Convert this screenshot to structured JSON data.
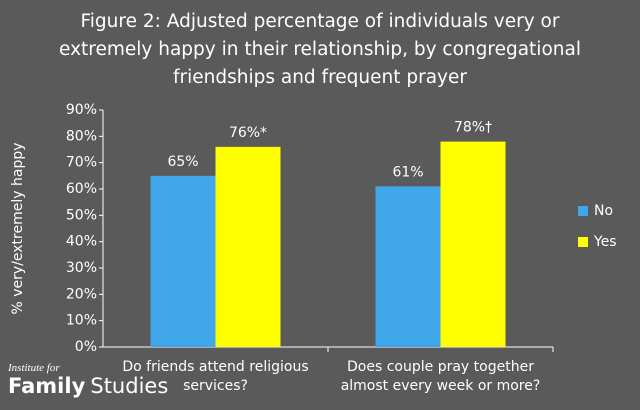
{
  "chart_data": {
    "type": "grouped-bar",
    "title": "Figure 2: Adjusted percentage of individuals very or extremely happy in their relationship, by congregational friendships and frequent prayer",
    "y_label": "% very/extremely happy",
    "categories": [
      "Do friends attend religious services?",
      "Does couple pray together almost every week or more?"
    ],
    "series": [
      {
        "name": "No",
        "color": "#3fa7e9",
        "values": [
          65,
          61
        ],
        "value_labels": [
          "65%",
          "61%"
        ]
      },
      {
        "name": "Yes",
        "color": "#ffff00",
        "values": [
          76,
          78
        ],
        "value_labels": [
          "76%*",
          "78%†"
        ]
      }
    ],
    "ylim": [
      0,
      90
    ],
    "yticks": [
      {
        "value": 0,
        "label": "0%"
      },
      {
        "value": 10,
        "label": "10%"
      },
      {
        "value": 20,
        "label": "20%"
      },
      {
        "value": 30,
        "label": "30%"
      },
      {
        "value": 40,
        "label": "40%"
      },
      {
        "value": 50,
        "label": "50%"
      },
      {
        "value": 60,
        "label": "60%"
      },
      {
        "value": 70,
        "label": "70%"
      },
      {
        "value": 80,
        "label": "80%"
      },
      {
        "value": 90,
        "label": "90%"
      }
    ],
    "grid": false,
    "legend": "right"
  },
  "logo": {
    "top": "Institute for",
    "bold": "Family",
    "rest": "Studies"
  }
}
